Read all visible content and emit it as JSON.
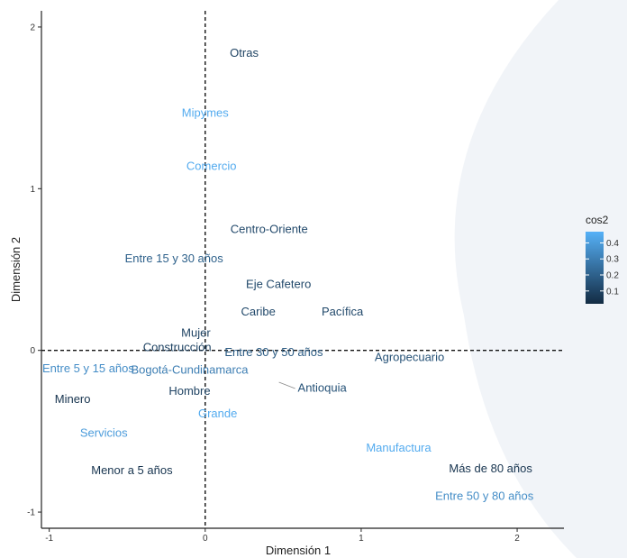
{
  "chart_data": {
    "type": "scatter",
    "title": "",
    "xlabel": "Dimensión 1",
    "ylabel": "Dimensión 2",
    "xlim": [
      -1.05,
      2.3
    ],
    "ylim": [
      -1.1,
      2.1
    ],
    "x_ticks": [
      -1,
      0,
      1,
      2
    ],
    "y_ticks": [
      -1,
      0,
      1,
      2
    ],
    "tick_labels_x": [
      "-1",
      "0",
      "1",
      "2"
    ],
    "tick_labels_y": [
      "-1",
      "0",
      "1",
      "2"
    ],
    "reference_lines": {
      "x": 0,
      "y": 0,
      "style": "dashed"
    },
    "grid": false,
    "legend": {
      "title": "cos2",
      "position": "right",
      "ticks": [
        0.1,
        0.2,
        0.3,
        0.4
      ],
      "tick_labels": [
        "0.1",
        "0.2",
        "0.3",
        "0.4"
      ],
      "range": [
        0.02,
        0.47
      ],
      "color_low": "#132B43",
      "color_high": "#56B1F7"
    },
    "points": [
      {
        "label": "Otras",
        "x": 0.25,
        "y": 1.84,
        "cos2": 0.1
      },
      {
        "label": "Mipymes",
        "x": 0.0,
        "y": 1.47,
        "cos2": 0.45
      },
      {
        "label": "Comercio",
        "x": 0.04,
        "y": 1.14,
        "cos2": 0.45
      },
      {
        "label": "Centro-Oriente",
        "x": 0.41,
        "y": 0.75,
        "cos2": 0.12
      },
      {
        "label": "Entre 15 y 30 años",
        "x": -0.2,
        "y": 0.57,
        "cos2": 0.2
      },
      {
        "label": "Eje Cafetero",
        "x": 0.47,
        "y": 0.41,
        "cos2": 0.12
      },
      {
        "label": "Caribe",
        "x": 0.34,
        "y": 0.24,
        "cos2": 0.12
      },
      {
        "label": "Pacífica",
        "x": 0.88,
        "y": 0.24,
        "cos2": 0.12
      },
      {
        "label": "Mujer",
        "x": -0.06,
        "y": 0.11,
        "cos2": 0.1
      },
      {
        "label": "Construcción",
        "x": -0.18,
        "y": 0.02,
        "cos2": 0.1
      },
      {
        "label": "Entre 30 y 50 años",
        "x": 0.44,
        "y": -0.01,
        "cos2": 0.18
      },
      {
        "label": "Agropecuario",
        "x": 1.31,
        "y": -0.04,
        "cos2": 0.15
      },
      {
        "label": "Entre 5 y 15 años",
        "x": -0.75,
        "y": -0.11,
        "cos2": 0.35
      },
      {
        "label": "Bogotá-Cundinamarca",
        "x": -0.1,
        "y": -0.12,
        "cos2": 0.3
      },
      {
        "label": "Antioquia",
        "x": 0.75,
        "y": -0.23,
        "cos2": 0.15
      },
      {
        "label": "Hombre",
        "x": -0.1,
        "y": -0.25,
        "cos2": 0.1
      },
      {
        "label": "Minero",
        "x": -0.85,
        "y": -0.3,
        "cos2": 0.05
      },
      {
        "label": "Grande",
        "x": 0.08,
        "y": -0.39,
        "cos2": 0.45
      },
      {
        "label": "Servicios",
        "x": -0.65,
        "y": -0.51,
        "cos2": 0.4
      },
      {
        "label": "Manufactura",
        "x": 1.24,
        "y": -0.6,
        "cos2": 0.45
      },
      {
        "label": "Más de 80 años",
        "x": 1.83,
        "y": -0.73,
        "cos2": 0.05
      },
      {
        "label": "Menor a 5 años",
        "x": -0.47,
        "y": -0.74,
        "cos2": 0.05
      },
      {
        "label": "Entre 50 y 80 años",
        "x": 1.79,
        "y": -0.9,
        "cos2": 0.35
      }
    ]
  }
}
